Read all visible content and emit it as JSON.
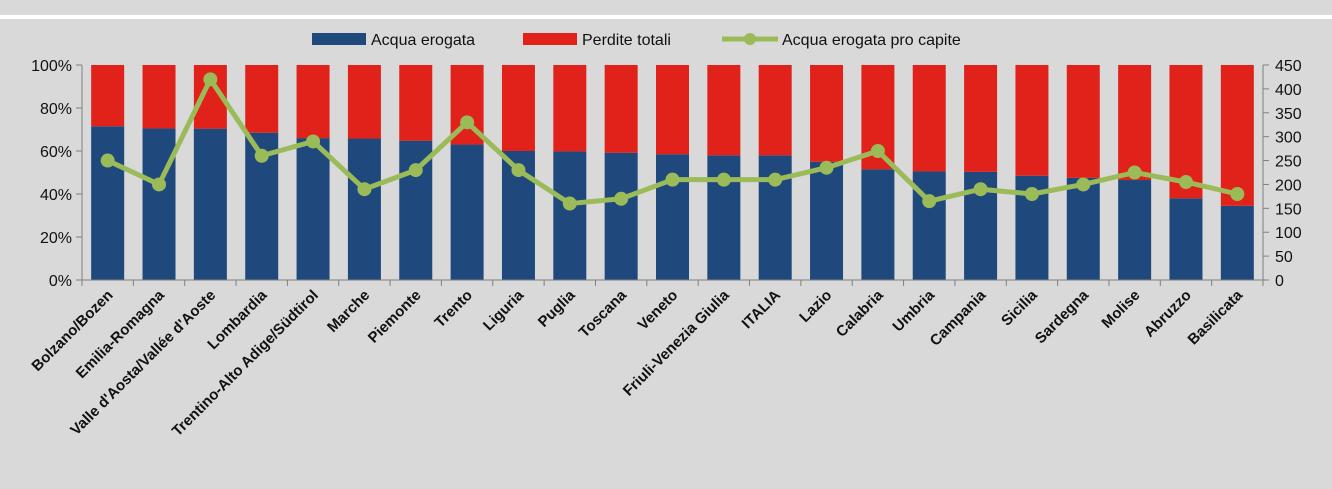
{
  "chart_data": {
    "type": "bar",
    "stacked": true,
    "percent_stacked": true,
    "categories": [
      "Bolzano/Bozen",
      "Emilia-Romagna",
      "Valle d'Aosta/Vallée d'Aoste",
      "Lombardia",
      "Trentino-Alto Adige/Südtirol",
      "Marche",
      "Piemonte",
      "Trento",
      "Liguria",
      "Puglia",
      "Toscana",
      "Veneto",
      "Friuli-Venezia Giulia",
      "ITALIA",
      "Lazio",
      "Calabria",
      "Umbria",
      "Campania",
      "Sicilia",
      "Sardegna",
      "Molise",
      "Abruzzo",
      "Basilicata"
    ],
    "series": [
      {
        "name": "Acqua erogata",
        "type": "bar",
        "axis": "left",
        "color": "#1f497d",
        "values": [
          71.5,
          70.5,
          70.4,
          68.5,
          66.0,
          65.8,
          64.8,
          63.0,
          60.0,
          59.8,
          59.2,
          58.5,
          58.0,
          58.0,
          55.0,
          51.5,
          50.5,
          50.3,
          48.5,
          47.5,
          46.5,
          38.0,
          34.5
        ]
      },
      {
        "name": "Perdite totali",
        "type": "bar",
        "axis": "left",
        "color": "#e0221b",
        "values": [
          28.5,
          29.5,
          29.6,
          31.5,
          34.0,
          34.2,
          35.2,
          37.0,
          40.0,
          40.2,
          40.8,
          41.5,
          42.0,
          42.0,
          45.0,
          48.5,
          49.5,
          49.7,
          51.5,
          52.5,
          53.5,
          62.0,
          65.5
        ]
      },
      {
        "name": "Acqua erogata pro capite",
        "type": "line",
        "axis": "right",
        "color": "#9bbb59",
        "values": [
          250,
          200,
          420,
          260,
          290,
          190,
          230,
          330,
          230,
          160,
          170,
          210,
          210,
          210,
          235,
          270,
          165,
          190,
          180,
          200,
          225,
          205,
          180
        ]
      }
    ],
    "yaxis_left": {
      "min": 0,
      "max": 100,
      "ticks": [
        "0%",
        "20%",
        "40%",
        "60%",
        "80%",
        "100%"
      ]
    },
    "yaxis_right": {
      "min": 0,
      "max": 450,
      "ticks": [
        "0",
        "50",
        "100",
        "150",
        "200",
        "250",
        "300",
        "350",
        "400",
        "450"
      ]
    },
    "grid": false,
    "legend_position": "top",
    "colors": {
      "background": "#d9d9d9",
      "top_rule": "#ffffff",
      "axis": "#7f7f7f"
    }
  }
}
